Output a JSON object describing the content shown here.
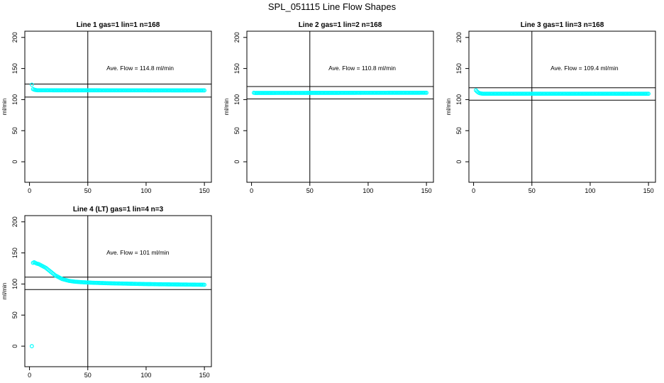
{
  "figure_title": "SPL_051115  Line Flow Shapes",
  "chart_data": [
    {
      "type": "scatter",
      "title": "Line 1 gas=1 lin=1 n=168",
      "xlabel": "",
      "ylabel": "ml/min",
      "xlim": [
        -4,
        156
      ],
      "ylim": [
        -33,
        210
      ],
      "xticks": [
        0,
        50,
        100,
        150
      ],
      "yticks": [
        0,
        50,
        100,
        150,
        200
      ],
      "series_color": "#00ffff",
      "annotation": "Ave. Flow =  114.8  ml/min",
      "hlines": [
        125,
        104
      ],
      "vline": 50,
      "points": [
        [
          2,
          124
        ],
        [
          3,
          117
        ],
        [
          4,
          116
        ],
        [
          5,
          115.5
        ],
        [
          6,
          115.2
        ]
      ],
      "flat_from": 7,
      "flat_to": 150,
      "flat_y_start": 115,
      "flat_y_end": 114.8,
      "flat_step": 1
    },
    {
      "type": "scatter",
      "title": "Line 2 gas=1 lin=2 n=168",
      "xlabel": "",
      "ylabel": "ml/min",
      "xlim": [
        -4,
        156
      ],
      "ylim": [
        -33,
        210
      ],
      "xticks": [
        0,
        50,
        100,
        150
      ],
      "yticks": [
        0,
        50,
        100,
        150,
        200
      ],
      "series_color": "#00ffff",
      "annotation": "Ave. Flow =  110.8  ml/min",
      "hlines": [
        121,
        101
      ],
      "vline": 50,
      "points": [
        [
          2,
          111
        ],
        [
          3,
          110.6
        ]
      ],
      "flat_from": 4,
      "flat_to": 150,
      "flat_y_start": 110.7,
      "flat_y_end": 111,
      "flat_step": 1
    },
    {
      "type": "scatter",
      "title": "Line 3 gas=1 lin=3 n=168",
      "xlabel": "",
      "ylabel": "ml/min",
      "xlim": [
        -4,
        156
      ],
      "ylim": [
        -33,
        210
      ],
      "xticks": [
        0,
        50,
        100,
        150
      ],
      "yticks": [
        0,
        50,
        100,
        150,
        200
      ],
      "series_color": "#00ffff",
      "annotation": "Ave. Flow =  109.4  ml/min",
      "hlines": [
        119,
        99
      ],
      "vline": 50,
      "points": [
        [
          2,
          115
        ],
        [
          3,
          113
        ],
        [
          4,
          111.5
        ],
        [
          5,
          110.5
        ],
        [
          6,
          110
        ],
        [
          7,
          109.7
        ]
      ],
      "flat_from": 8,
      "flat_to": 150,
      "flat_y_start": 109.5,
      "flat_y_end": 109.4,
      "flat_step": 1
    },
    {
      "type": "scatter",
      "title": "Line 4 (LT) gas=1 lin=4 n=3",
      "xlabel": "",
      "ylabel": "ml/min",
      "xlim": [
        -4,
        156
      ],
      "ylim": [
        -33,
        210
      ],
      "xticks": [
        0,
        50,
        100,
        150
      ],
      "yticks": [
        0,
        50,
        100,
        150,
        200
      ],
      "series_color": "#00ffff",
      "annotation": "Ave. Flow =  101  ml/min",
      "hlines": [
        111,
        91
      ],
      "vline": 50,
      "points": [
        [
          2,
          0
        ],
        [
          3,
          134
        ],
        [
          4,
          135
        ],
        [
          5,
          134
        ],
        [
          6,
          133
        ],
        [
          8,
          132
        ],
        [
          10,
          130
        ],
        [
          12,
          128
        ],
        [
          14,
          126
        ],
        [
          16,
          123
        ],
        [
          18,
          120
        ],
        [
          20,
          117
        ],
        [
          22,
          114
        ],
        [
          24,
          112
        ],
        [
          26,
          110
        ],
        [
          28,
          108
        ],
        [
          30,
          107
        ],
        [
          32,
          106
        ],
        [
          34,
          105
        ],
        [
          36,
          104.5
        ],
        [
          38,
          104
        ],
        [
          40,
          103.6
        ],
        [
          42,
          103.3
        ],
        [
          44,
          103
        ],
        [
          46,
          102.8
        ],
        [
          48,
          102.6
        ],
        [
          50,
          102.4
        ],
        [
          55,
          102
        ],
        [
          60,
          101.7
        ],
        [
          65,
          101.4
        ],
        [
          70,
          101.1
        ],
        [
          75,
          100.9
        ],
        [
          80,
          100.7
        ],
        [
          85,
          100.5
        ],
        [
          90,
          100.3
        ],
        [
          95,
          100.1
        ],
        [
          100,
          99.9
        ],
        [
          105,
          99.8
        ],
        [
          110,
          99.6
        ],
        [
          115,
          99.5
        ],
        [
          120,
          99.4
        ],
        [
          125,
          99.3
        ],
        [
          130,
          99.2
        ],
        [
          135,
          99.1
        ],
        [
          140,
          99
        ],
        [
          145,
          98.9
        ],
        [
          150,
          98.8
        ]
      ],
      "fill_between": true
    }
  ]
}
